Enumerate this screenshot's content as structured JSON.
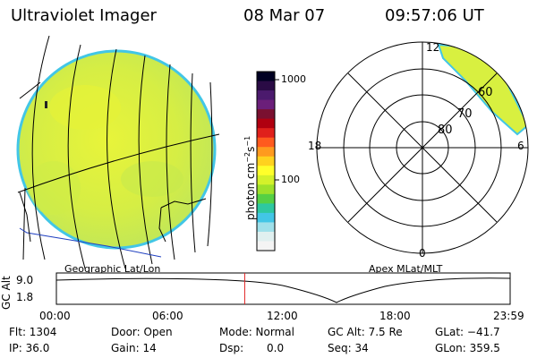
{
  "header": {
    "instrument": "Ultraviolet Imager",
    "date": "08 Mar 07",
    "time": "09:57:06 UT"
  },
  "colorbar": {
    "unit_label": "photon cm",
    "unit_exp1": "−2",
    "unit_mid": "s",
    "unit_exp2": "−1",
    "ticks": [
      "1000",
      "100"
    ],
    "colors": [
      "#000022",
      "#2a0b45",
      "#4b1a6d",
      "#6b1f7a",
      "#7a1030",
      "#b00010",
      "#e0201b",
      "#ff5a1e",
      "#ff9a1e",
      "#ffd21e",
      "#ffff2a",
      "#d4f12a",
      "#9ee12a",
      "#55d044",
      "#2ec8a0",
      "#42c6e6",
      "#9fe0ea",
      "#e0f0f0",
      "#f4f4f4"
    ]
  },
  "polar": {
    "hour_labels": [
      "12",
      "18",
      "6",
      "0"
    ],
    "lat_labels": [
      "60",
      "70",
      "80"
    ]
  },
  "captions": {
    "left": "Geographic Lat/Lon",
    "right": "Apex MLat/MLT"
  },
  "altitude_plot": {
    "axis_title": "GC Alt",
    "y_ticks": [
      "9.0",
      "1.8"
    ],
    "x_ticks": [
      "00:00",
      "06:00",
      "12:00",
      "18:00",
      "23:59"
    ],
    "current_time_fraction": 0.415
  },
  "info": {
    "flt": "Flt: 1304",
    "ip": "IP: 36.0",
    "door": "Door: Open",
    "gain": "Gain: 14",
    "mode": "Mode: Normal",
    "dsp": "Dsp:",
    "dsp_value": "0.0",
    "gcalt": "GC Alt: 7.5 Re",
    "seq": "Seq: 34",
    "glat": "GLat: −41.7",
    "glon": "GLon: 359.5"
  },
  "colors": {
    "disk_fill": "#d8f040",
    "disk_edge": "#42c6e6",
    "coast_blue": "#2040c0",
    "marker_red": "#e02020"
  }
}
